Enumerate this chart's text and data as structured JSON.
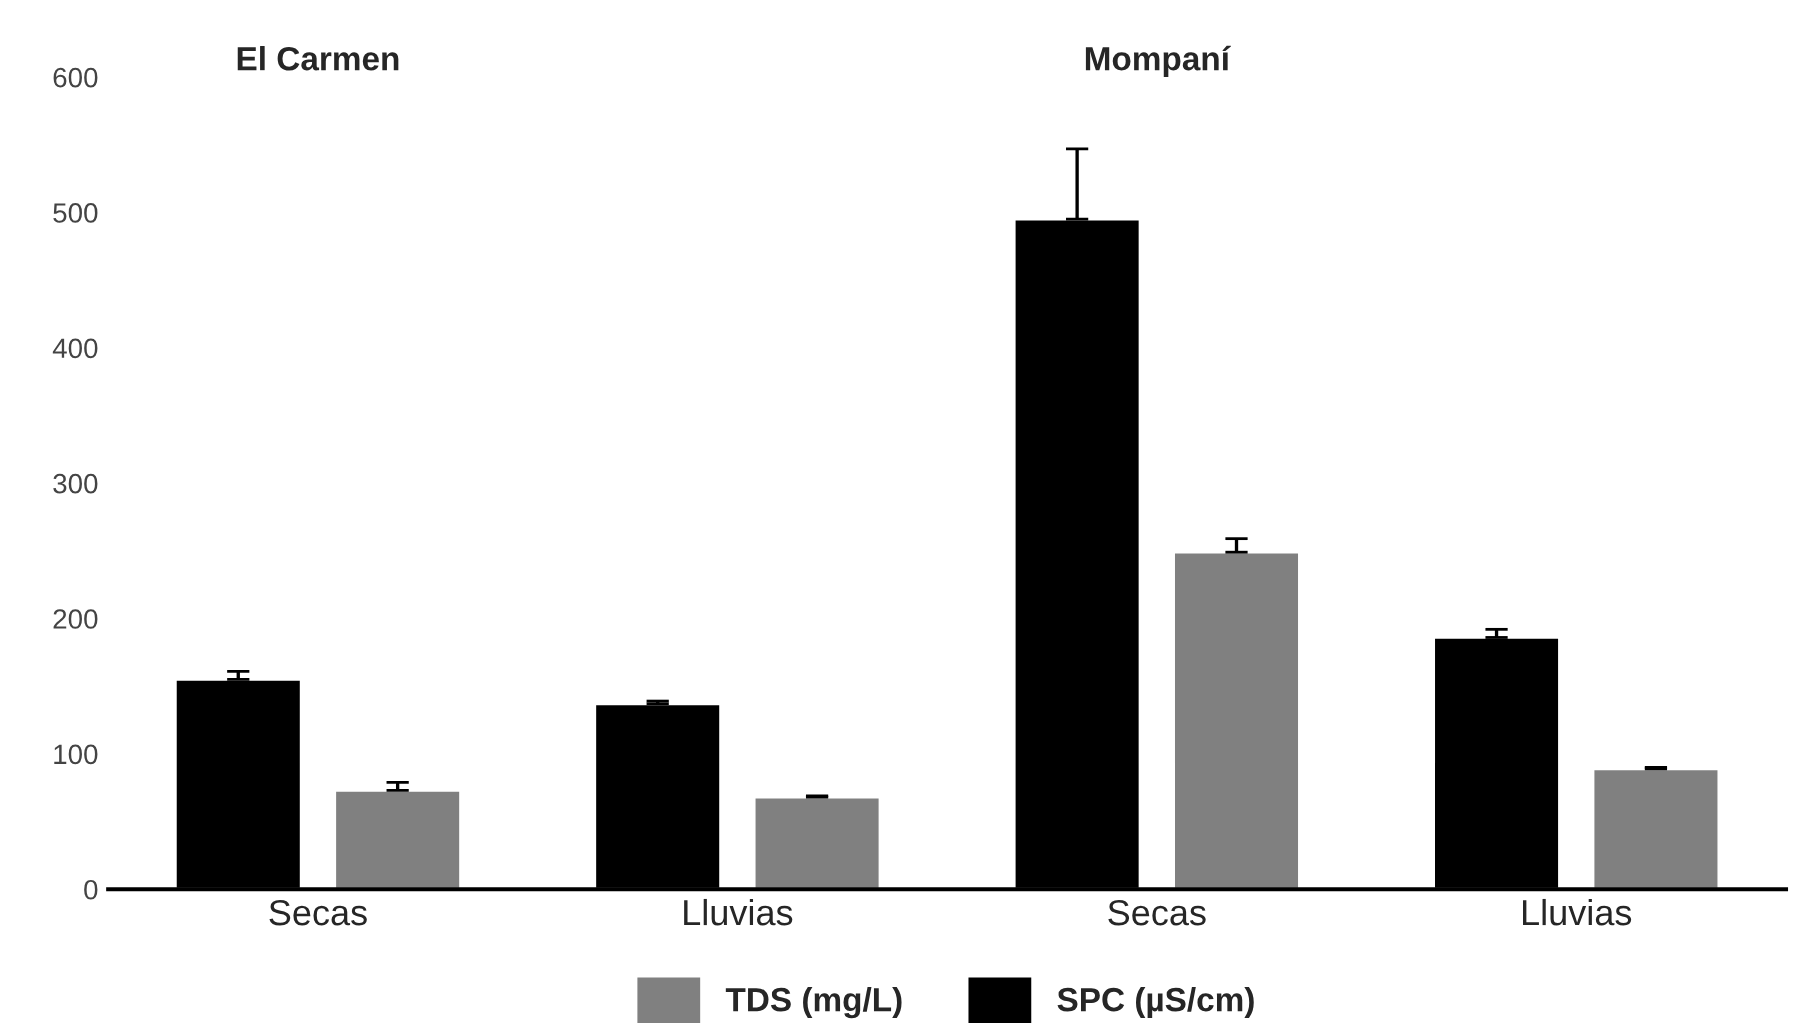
{
  "chart_data": {
    "type": "bar",
    "categories": [
      "Secas",
      "Lluvias",
      "Secas",
      "Lluvias"
    ],
    "series": [
      {
        "name": "SPC (µS/cm)",
        "color": "#000000",
        "values": [
          155,
          137,
          495,
          186
        ],
        "errors": [
          [
            155,
            161
          ],
          [
            137,
            139
          ],
          [
            495,
            547
          ],
          [
            186,
            192
          ]
        ]
      },
      {
        "name": "TDS (mg/L)",
        "color": "#808080",
        "values": [
          73,
          68,
          249,
          89
        ],
        "errors": [
          [
            73,
            79
          ],
          [
            68,
            69
          ],
          [
            249,
            259
          ],
          [
            89,
            90
          ]
        ]
      }
    ],
    "annotations": [
      "El Carmen",
      "Mompaní"
    ],
    "ylim": [
      0,
      600
    ],
    "yticks": [
      0,
      100,
      200,
      300,
      400,
      500,
      600
    ],
    "grid": false,
    "legend": "bottom"
  }
}
